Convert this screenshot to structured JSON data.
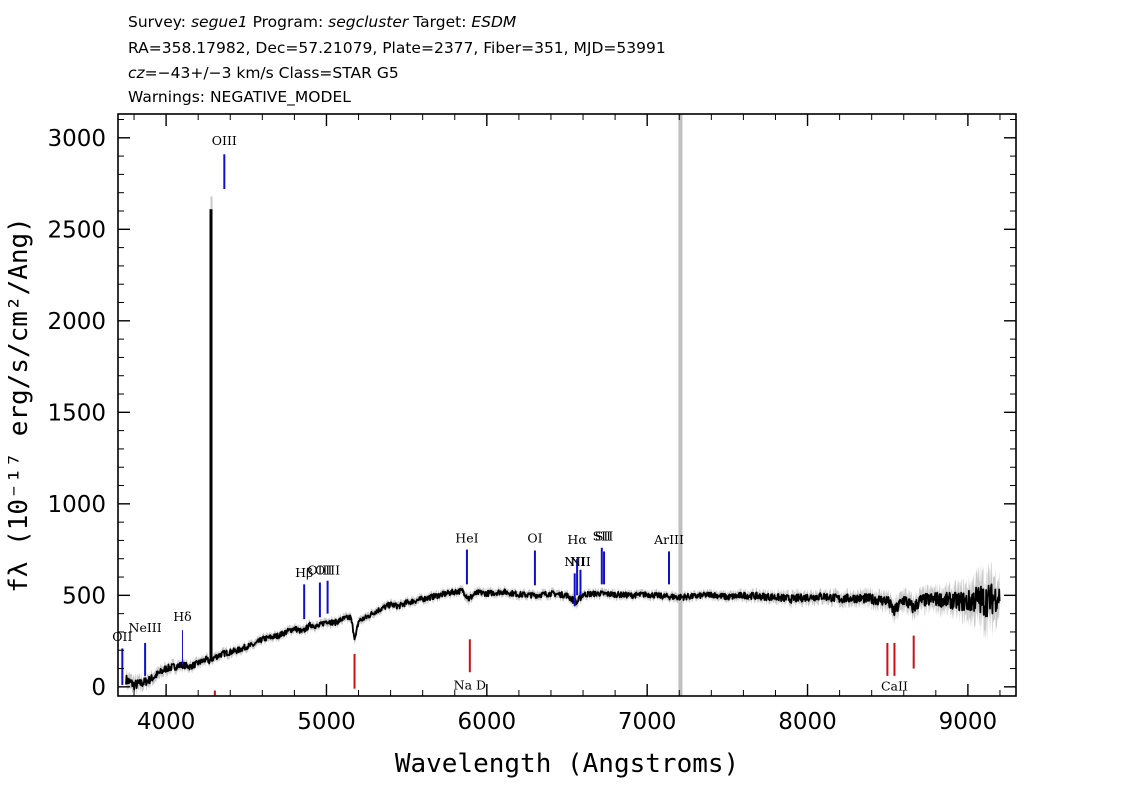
{
  "header": {
    "survey_label": "Survey:",
    "survey": "segue1",
    "program_label": "Program:",
    "program": "segcluster",
    "target_label": "Target:",
    "target": "ESDM",
    "line2": "RA=358.17982, Dec=57.21079, Plate=2377, Fiber=351, MJD=53991",
    "cz_label": "cz",
    "cz_value": "=−43+/−3 km/s Class=STAR G5",
    "warnings": "Warnings: NEGATIVE_MODEL"
  },
  "colors": {
    "emission": "#1010cc",
    "absorption": "#cc1010",
    "spectrum": "#000000",
    "error_band": "#c8c8c8",
    "masked_band": "#c0c0c0",
    "label_dash": "#000000"
  },
  "chart_data": {
    "type": "line",
    "title": "",
    "xlabel": "Wavelength (Angstroms)",
    "ylabel": "fλ (10⁻¹⁷ erg/s/cm²/Ang)",
    "xlim": [
      3700,
      9300
    ],
    "ylim": [
      -50,
      3130
    ],
    "xticks": [
      4000,
      5000,
      6000,
      7000,
      8000,
      9000
    ],
    "xtick_labels": [
      "4000",
      "5000",
      "6000",
      "7000",
      "8000",
      "9000"
    ],
    "yticks": [
      0,
      500,
      1000,
      1500,
      2000,
      2500,
      3000
    ],
    "ytick_labels": [
      "0",
      "500",
      "1000",
      "1500",
      "2000",
      "2500",
      "3000"
    ],
    "grid": false,
    "masked_region": [
      7195,
      7210
    ],
    "spike": {
      "x": 4280,
      "y": 2610
    },
    "spectrum": {
      "name": "flux",
      "x": [
        3750,
        3800,
        3850,
        3900,
        3950,
        4000,
        4050,
        4100,
        4150,
        4200,
        4250,
        4270,
        4300,
        4350,
        4400,
        4450,
        4500,
        4550,
        4600,
        4650,
        4700,
        4750,
        4800,
        4850,
        4900,
        4950,
        5000,
        5050,
        5100,
        5150,
        5180,
        5200,
        5250,
        5300,
        5350,
        5400,
        5450,
        5500,
        5550,
        5600,
        5650,
        5700,
        5750,
        5800,
        5850,
        5890,
        5920,
        5950,
        6000,
        6100,
        6200,
        6300,
        6400,
        6500,
        6560,
        6600,
        6700,
        6800,
        6900,
        7000,
        7100,
        7200,
        7300,
        7400,
        7500,
        7600,
        7700,
        7800,
        7900,
        8000,
        8100,
        8200,
        8300,
        8400,
        8500,
        8540,
        8600,
        8660,
        8700,
        8800,
        8900,
        9000,
        9050,
        9100,
        9150,
        9200
      ],
      "y": [
        40,
        10,
        20,
        40,
        70,
        100,
        110,
        120,
        110,
        130,
        150,
        140,
        160,
        180,
        190,
        200,
        220,
        230,
        260,
        270,
        280,
        300,
        320,
        300,
        340,
        330,
        360,
        350,
        370,
        380,
        260,
        360,
        380,
        410,
        430,
        450,
        440,
        460,
        470,
        480,
        490,
        500,
        510,
        520,
        525,
        480,
        505,
        515,
        510,
        520,
        505,
        500,
        510,
        500,
        460,
        505,
        510,
        505,
        500,
        505,
        495,
        490,
        495,
        505,
        490,
        500,
        495,
        490,
        480,
        490,
        495,
        480,
        485,
        480,
        470,
        410,
        480,
        430,
        470,
        480,
        470,
        465,
        480,
        470,
        480,
        500
      ],
      "error": [
        25,
        25,
        22,
        20,
        20,
        18,
        18,
        16,
        16,
        15,
        15,
        15,
        15,
        15,
        15,
        15,
        14,
        14,
        14,
        14,
        14,
        14,
        14,
        14,
        14,
        14,
        14,
        14,
        14,
        14,
        20,
        14,
        14,
        14,
        14,
        14,
        14,
        14,
        14,
        14,
        14,
        14,
        14,
        14,
        14,
        18,
        14,
        14,
        14,
        14,
        14,
        14,
        14,
        14,
        18,
        14,
        14,
        14,
        14,
        14,
        14,
        16,
        14,
        14,
        16,
        16,
        18,
        18,
        20,
        20,
        20,
        22,
        22,
        25,
        28,
        30,
        32,
        32,
        32,
        35,
        40,
        55,
        70,
        80,
        80,
        60
      ]
    },
    "emission_lines": [
      {
        "label": "OII",
        "x": 3727,
        "y0": 10,
        "y1": 210,
        "label_y": 250
      },
      {
        "label": "NeIII",
        "x": 3869,
        "y0": 60,
        "y1": 240,
        "label_y": 300
      },
      {
        "label": "Hδ",
        "x": 4102,
        "y0": 120,
        "y1": 310,
        "label_y": 360,
        "thin": true
      },
      {
        "label": "OIII",
        "x": 4363,
        "y0": 2720,
        "y1": 2910,
        "label_y": 2960
      },
      {
        "label": "Hβ",
        "x": 4861,
        "y0": 370,
        "y1": 560,
        "label_y": 600
      },
      {
        "label": "OIII",
        "x": 4959,
        "y0": 380,
        "y1": 570,
        "label_y": 615
      },
      {
        "label": "OIII",
        "x": 5007,
        "y0": 400,
        "y1": 580,
        "label_y": 615
      },
      {
        "label": "HeI",
        "x": 5876,
        "y0": 560,
        "y1": 750,
        "label_y": 790
      },
      {
        "label": "OI",
        "x": 6300,
        "y0": 555,
        "y1": 745,
        "label_y": 790
      },
      {
        "label": "NII",
        "x": 6548,
        "y0": 440,
        "y1": 620,
        "label_y": 660
      },
      {
        "label": "Hα",
        "x": 6563,
        "y0": 500,
        "y1": 700,
        "label_y": 780
      },
      {
        "label": "NII",
        "x": 6584,
        "y0": 500,
        "y1": 640,
        "label_y": 660
      },
      {
        "label": "SII",
        "x": 6717,
        "y0": 560,
        "y1": 760,
        "label_y": 800
      },
      {
        "label": "SII",
        "x": 6731,
        "y0": 560,
        "y1": 740,
        "label_y": 800
      },
      {
        "label": "ArIII",
        "x": 7136,
        "y0": 560,
        "y1": 740,
        "label_y": 780
      }
    ],
    "absorption_lines": [
      {
        "label": "",
        "x": 4304,
        "y0": -50,
        "y1": -20
      },
      {
        "label": "",
        "x": 5175,
        "y0": -10,
        "y1": 180
      },
      {
        "label": "Na D",
        "x": 5894,
        "y0": 80,
        "y1": 260,
        "label_y": -15
      },
      {
        "label": "",
        "x": 8498,
        "y0": 60,
        "y1": 240
      },
      {
        "label": "CaII",
        "x": 8542,
        "y0": 60,
        "y1": 240,
        "label_y": -20
      },
      {
        "label": "",
        "x": 8662,
        "y0": 100,
        "y1": 280
      }
    ]
  }
}
